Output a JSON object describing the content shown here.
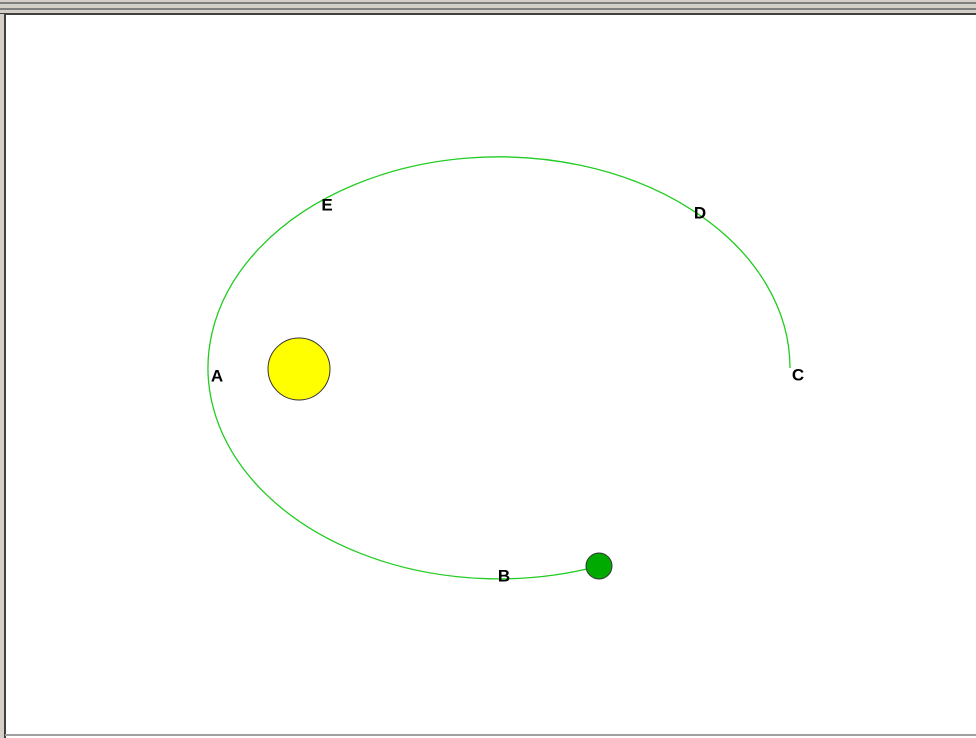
{
  "points": [
    {
      "label": "A"
    },
    {
      "label": "B"
    },
    {
      "label": "C"
    },
    {
      "label": "D"
    },
    {
      "label": "E"
    }
  ]
}
